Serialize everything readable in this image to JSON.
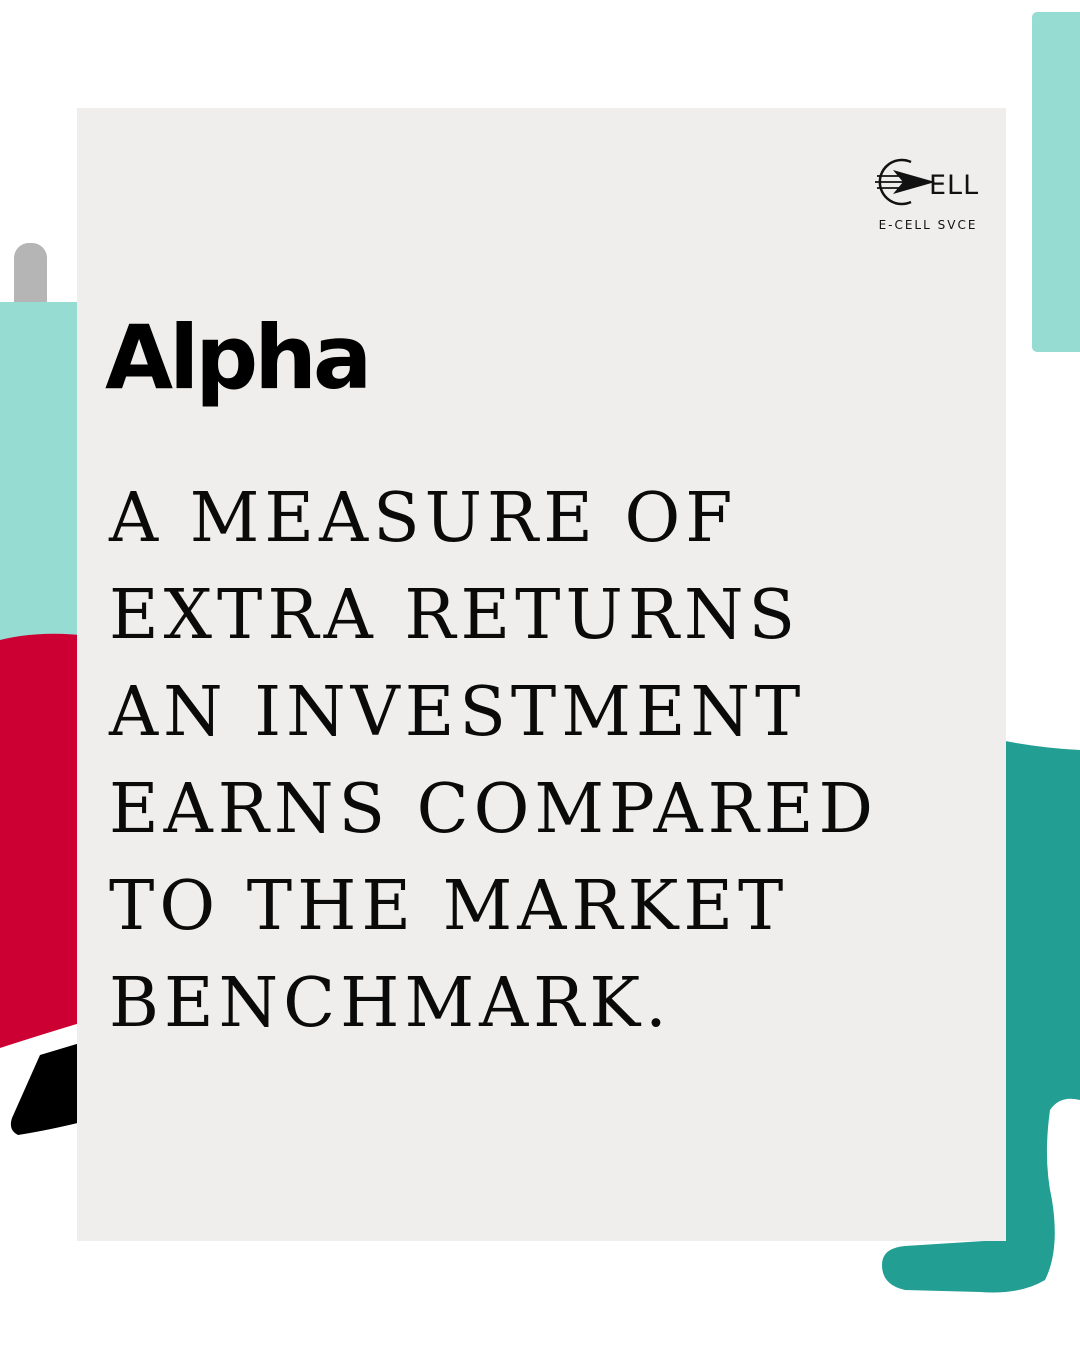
{
  "logo": {
    "mark_text": "ELL",
    "caption": "E-CELL SVCE"
  },
  "title": "Alpha",
  "definition_lines": [
    "A MEASURE OF",
    "EXTRA RETURNS",
    "AN INVESTMENT",
    "EARNS COMPARED",
    "TO THE MARKET",
    "BENCHMARK."
  ],
  "colors": {
    "card_background": "#efeeec",
    "mint": "#97dcd3",
    "teal": "#229e92",
    "crimson": "#cc0033",
    "grey_handle": "#b5b5b5",
    "black_shape": "#000000"
  }
}
